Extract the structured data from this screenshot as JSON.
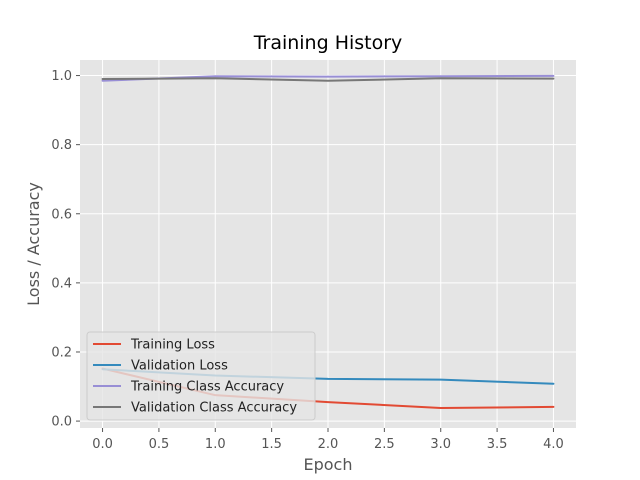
{
  "chart_data": {
    "type": "line",
    "title": "Training History",
    "xlabel": "Epoch",
    "ylabel": "Loss / Accuracy",
    "xlim": [
      -0.2,
      4.2
    ],
    "ylim": [
      -0.02,
      1.045
    ],
    "x_ticks": [
      0.0,
      0.5,
      1.0,
      1.5,
      2.0,
      2.5,
      3.0,
      3.5,
      4.0
    ],
    "x_tick_labels": [
      "0.0",
      "0.5",
      "1.0",
      "1.5",
      "2.0",
      "2.5",
      "3.0",
      "3.5",
      "4.0"
    ],
    "y_ticks": [
      0.0,
      0.2,
      0.4,
      0.6,
      0.8,
      1.0
    ],
    "y_tick_labels": [
      "0.0",
      "0.2",
      "0.4",
      "0.6",
      "0.8",
      "1.0"
    ],
    "grid": true,
    "legend_position": "lower-left",
    "style": {
      "plot_background": "#e5e5e5",
      "grid_color": "#ffffff"
    },
    "x": [
      0,
      1,
      2,
      3,
      4
    ],
    "series": [
      {
        "name": "Training Loss",
        "color": "#e24a33",
        "values": [
          0.152,
          0.075,
          0.055,
          0.038,
          0.041
        ]
      },
      {
        "name": "Validation Loss",
        "color": "#348abd",
        "values": [
          0.15,
          0.132,
          0.122,
          0.12,
          0.108
        ]
      },
      {
        "name": "Training Class Accuracy",
        "color": "#988ed5",
        "values": [
          0.985,
          0.998,
          0.997,
          0.998,
          0.999
        ]
      },
      {
        "name": "Validation Class Accuracy",
        "color": "#777777",
        "values": [
          0.99,
          0.992,
          0.985,
          0.992,
          0.991
        ]
      }
    ]
  }
}
